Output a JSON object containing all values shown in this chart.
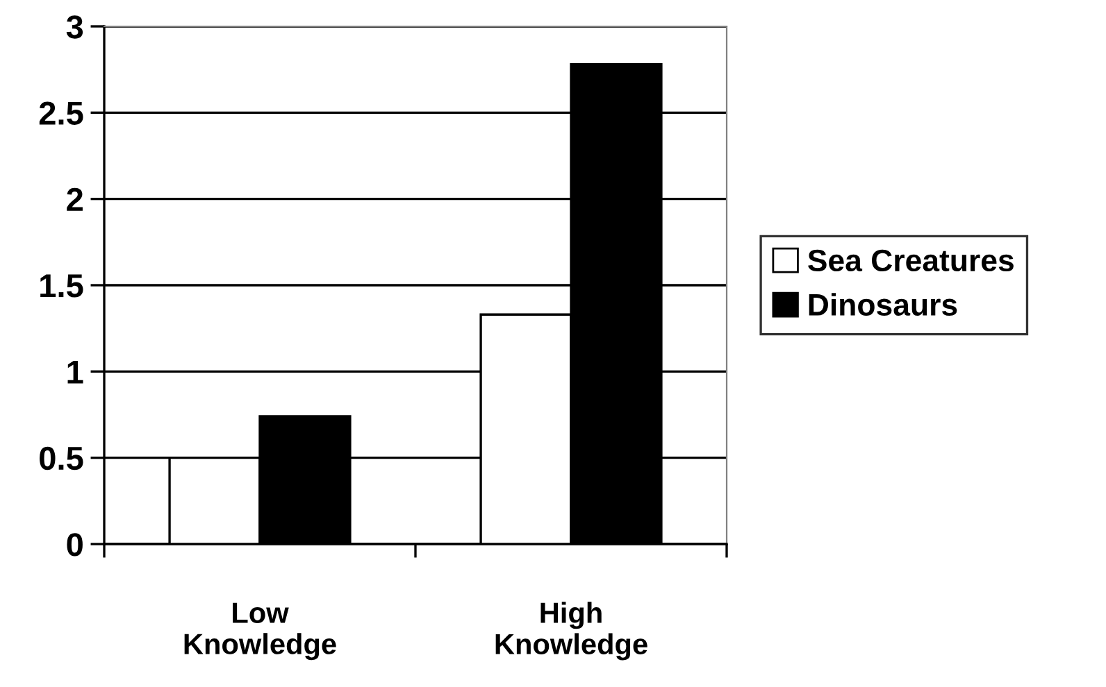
{
  "chart_data": {
    "type": "bar",
    "categories": [
      "Low\nKnowledge",
      "High\nKnowledge"
    ],
    "series": [
      {
        "name": "Sea Creatures",
        "color": "#ffffff",
        "values": [
          0.5,
          1.33
        ]
      },
      {
        "name": "Dinosaurs",
        "color": "#000000",
        "values": [
          0.74,
          2.78
        ]
      }
    ],
    "ylim": [
      0,
      3
    ],
    "yticks": [
      0,
      0.5,
      1,
      1.5,
      2,
      2.5,
      3
    ],
    "grid": "y",
    "legend": "right"
  }
}
